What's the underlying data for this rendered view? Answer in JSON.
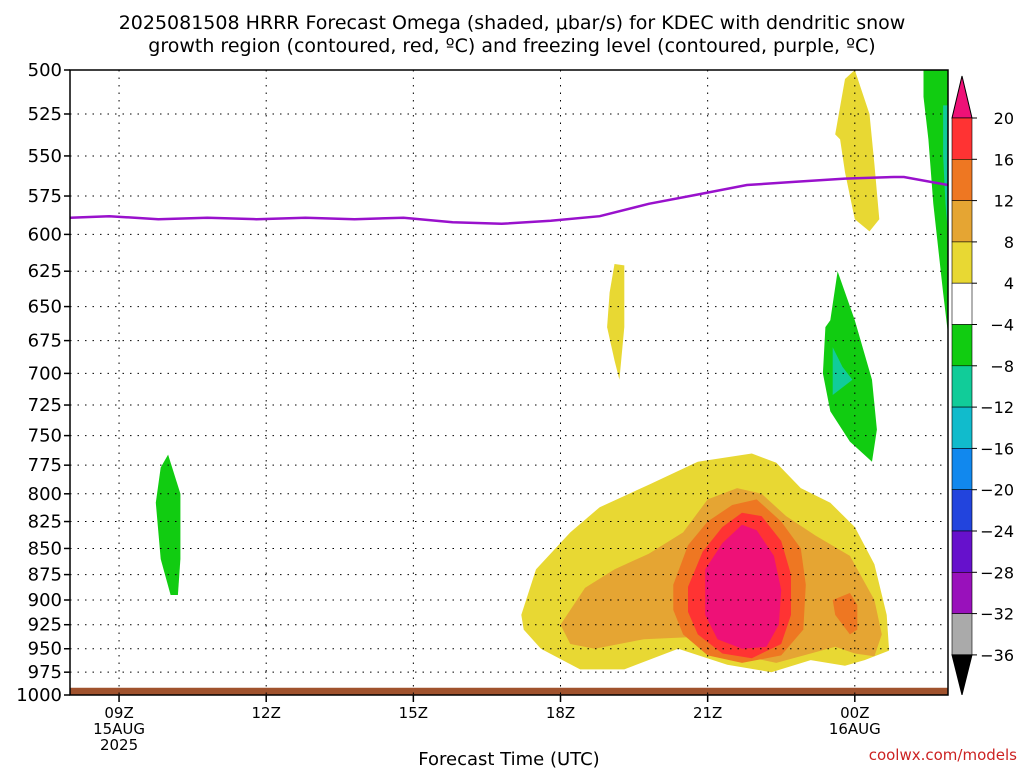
{
  "chart_data": {
    "type": "heatmap",
    "title_line1": "2025081508 HRRR Forecast Omega (shaded, μbar/s) for KDEC with dendritic snow",
    "title_line2": "growth region (contoured, red, ºC) and freezing level (contoured, purple, ºC)",
    "xlabel": "Forecast Time (UTC)",
    "credit": "coolwx.com/models",
    "x_ticks": [
      {
        "t": 9,
        "l1": "09Z",
        "l2": "15AUG",
        "l3": "2025"
      },
      {
        "t": 12,
        "l1": "12Z",
        "l2": "",
        "l3": ""
      },
      {
        "t": 15,
        "l1": "15Z",
        "l2": "",
        "l3": ""
      },
      {
        "t": 18,
        "l1": "18Z",
        "l2": "",
        "l3": ""
      },
      {
        "t": 21,
        "l1": "21Z",
        "l2": "",
        "l3": ""
      },
      {
        "t": 24,
        "l1": "00Z",
        "l2": "16AUG",
        "l3": ""
      }
    ],
    "xlim": [
      8,
      25.9
    ],
    "y_levels": [
      500,
      525,
      550,
      575,
      600,
      625,
      650,
      675,
      700,
      725,
      750,
      775,
      800,
      825,
      850,
      875,
      900,
      925,
      950,
      975,
      1000
    ],
    "ylim": [
      1000,
      500
    ],
    "y_scale": "log-pressure",
    "colorbar": {
      "labels": [
        "20",
        "16",
        "12",
        "8",
        "4",
        "−4",
        "−8",
        "−12",
        "−16",
        "−20",
        "−24",
        "−28",
        "−32",
        "−36"
      ],
      "colors": [
        "#ee1177",
        "#ff3333",
        "#ee7722",
        "#e5a533",
        "#e8d833",
        "#ffffff",
        "#11cc11",
        "#11cc99",
        "#11bbcc",
        "#1188ee",
        "#2244dd",
        "#6611cc",
        "#9911bb",
        "#aaaaaa",
        "#000000"
      ]
    },
    "freezing_level": {
      "color": "#9911cc",
      "x": [
        8,
        8.8,
        9.8,
        10.8,
        11.8,
        12.8,
        13.8,
        14.8,
        15.8,
        16.8,
        17.8,
        18.8,
        19.8,
        20.8,
        21.8,
        22.8,
        23.8,
        24.8,
        25.0,
        25.9
      ],
      "y": [
        589,
        588,
        590,
        589,
        590,
        589,
        590,
        589,
        592,
        593,
        591,
        588,
        580,
        574,
        568,
        566,
        564,
        563,
        563,
        568
      ]
    },
    "omega_regions": [
      {
        "color": "#11cc11",
        "points": [
          [
            10.0,
            766
          ],
          [
            10.25,
            800
          ],
          [
            10.25,
            860
          ],
          [
            10.2,
            895
          ],
          [
            10.05,
            895
          ],
          [
            9.85,
            860
          ],
          [
            9.75,
            808
          ],
          [
            9.85,
            777
          ]
        ]
      },
      {
        "color": "#e8d833",
        "points": [
          [
            19.1,
            620
          ],
          [
            19.3,
            621
          ],
          [
            19.3,
            665
          ],
          [
            19.2,
            705
          ],
          [
            19.1,
            690
          ],
          [
            18.95,
            665
          ],
          [
            19.0,
            640
          ]
        ]
      },
      {
        "color": "#e8d833",
        "points": [
          [
            23.6,
            537
          ],
          [
            23.8,
            505
          ],
          [
            24.0,
            500
          ],
          [
            24.3,
            525
          ],
          [
            24.4,
            555
          ],
          [
            24.5,
            590
          ],
          [
            24.3,
            598
          ],
          [
            24.0,
            590
          ],
          [
            23.8,
            560
          ],
          [
            23.7,
            540
          ]
        ]
      },
      {
        "color": "#11cc11",
        "points": [
          [
            23.5,
            660
          ],
          [
            23.65,
            625
          ],
          [
            24.0,
            660
          ],
          [
            24.35,
            705
          ],
          [
            24.45,
            745
          ],
          [
            24.35,
            772
          ],
          [
            23.9,
            755
          ],
          [
            23.5,
            730
          ],
          [
            23.35,
            700
          ],
          [
            23.4,
            665
          ]
        ]
      },
      {
        "color": "#11cc99",
        "points": [
          [
            23.55,
            680
          ],
          [
            23.75,
            695
          ],
          [
            23.95,
            705
          ],
          [
            23.55,
            717
          ]
        ]
      },
      {
        "color": "#11cc11",
        "points": [
          [
            25.4,
            500
          ],
          [
            25.9,
            500
          ],
          [
            25.9,
            670
          ],
          [
            25.8,
            640
          ],
          [
            25.6,
            580
          ],
          [
            25.5,
            540
          ],
          [
            25.4,
            515
          ]
        ]
      },
      {
        "color": "#11cc99",
        "points": [
          [
            25.8,
            520
          ],
          [
            25.9,
            520
          ],
          [
            25.9,
            600
          ],
          [
            25.85,
            580
          ],
          [
            25.8,
            550
          ]
        ]
      },
      {
        "color": "#e8d833",
        "points": [
          [
            17.2,
            915
          ],
          [
            17.5,
            870
          ],
          [
            18.2,
            835
          ],
          [
            18.8,
            812
          ],
          [
            19.8,
            792
          ],
          [
            20.8,
            772
          ],
          [
            21.9,
            765
          ],
          [
            22.4,
            773
          ],
          [
            22.9,
            795
          ],
          [
            23.5,
            808
          ],
          [
            24.0,
            830
          ],
          [
            24.4,
            865
          ],
          [
            24.65,
            915
          ],
          [
            24.7,
            952
          ],
          [
            24.2,
            962
          ],
          [
            23.8,
            968
          ],
          [
            23.1,
            962
          ],
          [
            22.3,
            975
          ],
          [
            21.4,
            967
          ],
          [
            20.4,
            950
          ],
          [
            19.3,
            972
          ],
          [
            18.4,
            972
          ],
          [
            17.6,
            950
          ],
          [
            17.25,
            930
          ]
        ]
      },
      {
        "color": "#e5a533",
        "points": [
          [
            18.0,
            925
          ],
          [
            18.5,
            888
          ],
          [
            19.1,
            870
          ],
          [
            19.8,
            855
          ],
          [
            20.5,
            835
          ],
          [
            21.0,
            805
          ],
          [
            21.6,
            795
          ],
          [
            22.1,
            800
          ],
          [
            22.6,
            820
          ],
          [
            23.2,
            838
          ],
          [
            23.9,
            857
          ],
          [
            24.4,
            900
          ],
          [
            24.55,
            935
          ],
          [
            24.4,
            958
          ],
          [
            24.0,
            955
          ],
          [
            23.6,
            948
          ],
          [
            23.1,
            955
          ],
          [
            22.4,
            965
          ],
          [
            21.5,
            955
          ],
          [
            20.6,
            938
          ],
          [
            19.7,
            940
          ],
          [
            18.7,
            950
          ],
          [
            18.2,
            945
          ]
        ]
      },
      {
        "color": "#ee7722",
        "points": [
          [
            20.3,
            885
          ],
          [
            20.6,
            847
          ],
          [
            21.0,
            825
          ],
          [
            21.5,
            810
          ],
          [
            22.0,
            805
          ],
          [
            22.5,
            825
          ],
          [
            22.9,
            850
          ],
          [
            23.0,
            885
          ],
          [
            22.95,
            930
          ],
          [
            22.5,
            957
          ],
          [
            21.7,
            965
          ],
          [
            21.0,
            957
          ],
          [
            20.5,
            935
          ],
          [
            20.3,
            910
          ]
        ]
      },
      {
        "color": "#ee7722",
        "points": [
          [
            23.55,
            900
          ],
          [
            23.9,
            893
          ],
          [
            24.05,
            905
          ],
          [
            24.05,
            930
          ],
          [
            23.9,
            935
          ],
          [
            23.6,
            915
          ]
        ]
      },
      {
        "color": "#ff3333",
        "points": [
          [
            20.6,
            887
          ],
          [
            20.9,
            853
          ],
          [
            21.3,
            830
          ],
          [
            21.7,
            817
          ],
          [
            22.1,
            820
          ],
          [
            22.5,
            843
          ],
          [
            22.7,
            875
          ],
          [
            22.7,
            915
          ],
          [
            22.5,
            945
          ],
          [
            21.9,
            960
          ],
          [
            21.3,
            955
          ],
          [
            20.8,
            935
          ],
          [
            20.6,
            912
          ]
        ]
      },
      {
        "color": "#ee1177",
        "points": [
          [
            20.95,
            870
          ],
          [
            21.3,
            845
          ],
          [
            21.7,
            828
          ],
          [
            22.0,
            833
          ],
          [
            22.35,
            857
          ],
          [
            22.5,
            890
          ],
          [
            22.45,
            925
          ],
          [
            22.2,
            948
          ],
          [
            21.7,
            950
          ],
          [
            21.2,
            940
          ],
          [
            20.95,
            915
          ]
        ]
      }
    ],
    "ground": {
      "color": "#a0522d",
      "from": 992,
      "to": 1000
    }
  }
}
